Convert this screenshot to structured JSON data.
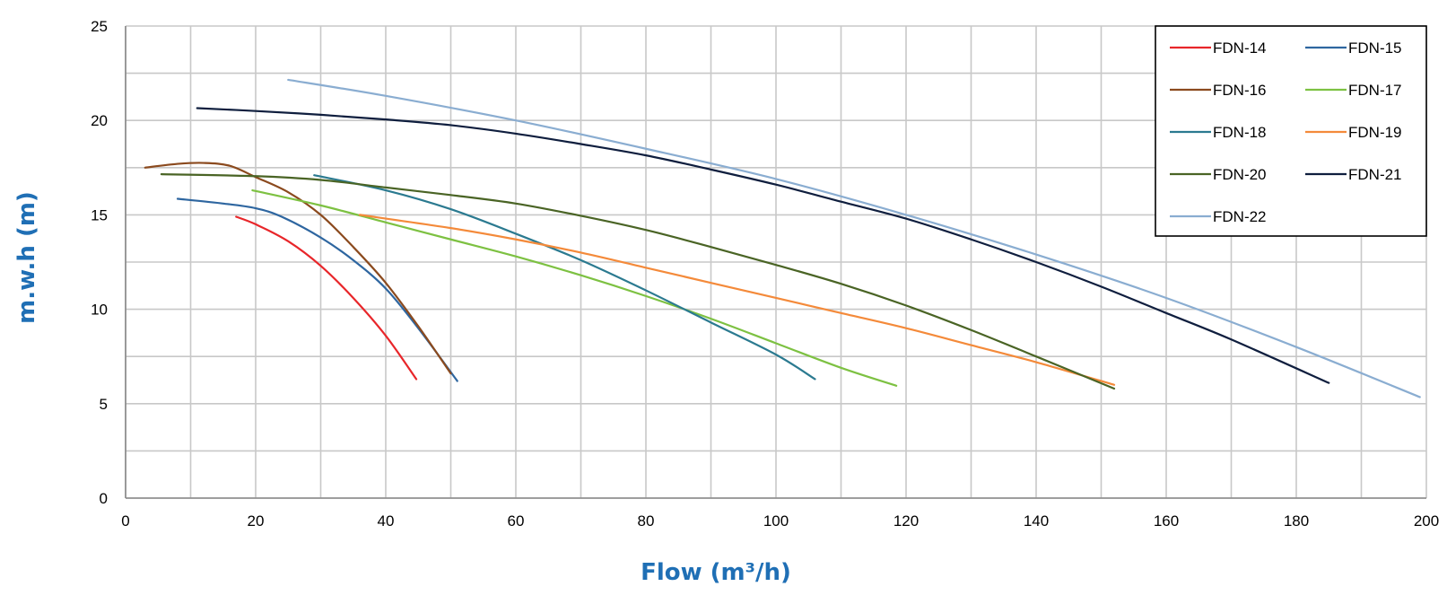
{
  "chart_data": {
    "type": "line",
    "title": "",
    "xlabel": "Flow (m³/h)",
    "ylabel": "m.w.h (m)",
    "xlim": [
      0,
      200
    ],
    "ylim": [
      0,
      25
    ],
    "x_ticks": [
      0,
      20,
      40,
      60,
      80,
      100,
      120,
      140,
      160,
      180,
      200
    ],
    "y_ticks": [
      0,
      5,
      10,
      15,
      20,
      25
    ],
    "x_minor_step": 10,
    "y_minor_step": 2.5,
    "grid": true,
    "legend_position": "top-right",
    "legend_columns": 2,
    "series": [
      {
        "name": "FDN-14",
        "color": "#e8262a",
        "points": [
          [
            17,
            14.9
          ],
          [
            20,
            14.5
          ],
          [
            25,
            13.6
          ],
          [
            30,
            12.3
          ],
          [
            35,
            10.6
          ],
          [
            40,
            8.6
          ],
          [
            44.7,
            6.3
          ]
        ]
      },
      {
        "name": "FDN-15",
        "color": "#2e66a0",
        "points": [
          [
            8,
            15.85
          ],
          [
            15,
            15.6
          ],
          [
            20,
            15.35
          ],
          [
            24,
            14.9
          ],
          [
            30,
            13.8
          ],
          [
            35,
            12.6
          ],
          [
            40,
            11.1
          ],
          [
            45,
            9.0
          ],
          [
            51,
            6.2
          ]
        ]
      },
      {
        "name": "FDN-16",
        "color": "#8b4a1e",
        "points": [
          [
            3,
            17.5
          ],
          [
            8,
            17.7
          ],
          [
            12,
            17.75
          ],
          [
            16,
            17.6
          ],
          [
            20,
            17.0
          ],
          [
            25,
            16.2
          ],
          [
            30,
            15.0
          ],
          [
            35,
            13.3
          ],
          [
            40,
            11.4
          ],
          [
            45,
            9.1
          ],
          [
            50,
            6.6
          ]
        ]
      },
      {
        "name": "FDN-17",
        "color": "#7dc142",
        "points": [
          [
            19.5,
            16.3
          ],
          [
            30,
            15.5
          ],
          [
            40,
            14.6
          ],
          [
            50,
            13.7
          ],
          [
            60,
            12.8
          ],
          [
            70,
            11.8
          ],
          [
            80,
            10.7
          ],
          [
            90,
            9.5
          ],
          [
            100,
            8.2
          ],
          [
            110,
            6.9
          ],
          [
            118.5,
            5.95
          ]
        ]
      },
      {
        "name": "FDN-18",
        "color": "#2b7a90",
        "points": [
          [
            29,
            17.1
          ],
          [
            40,
            16.3
          ],
          [
            50,
            15.3
          ],
          [
            60,
            14.0
          ],
          [
            70,
            12.6
          ],
          [
            80,
            11.0
          ],
          [
            90,
            9.3
          ],
          [
            100,
            7.6
          ],
          [
            106,
            6.3
          ]
        ]
      },
      {
        "name": "FDN-19",
        "color": "#f48a3a",
        "points": [
          [
            36,
            15.0
          ],
          [
            50,
            14.3
          ],
          [
            60,
            13.7
          ],
          [
            70,
            13.0
          ],
          [
            80,
            12.2
          ],
          [
            90,
            11.4
          ],
          [
            100,
            10.6
          ],
          [
            110,
            9.8
          ],
          [
            120,
            9.0
          ],
          [
            130,
            8.1
          ],
          [
            140,
            7.2
          ],
          [
            152,
            6.0
          ]
        ]
      },
      {
        "name": "FDN-20",
        "color": "#4a6425",
        "points": [
          [
            5.5,
            17.15
          ],
          [
            20,
            17.05
          ],
          [
            30,
            16.85
          ],
          [
            40,
            16.45
          ],
          [
            50,
            16.05
          ],
          [
            60,
            15.6
          ],
          [
            70,
            14.95
          ],
          [
            80,
            14.2
          ],
          [
            90,
            13.3
          ],
          [
            100,
            12.35
          ],
          [
            110,
            11.35
          ],
          [
            120,
            10.2
          ],
          [
            130,
            8.9
          ],
          [
            140,
            7.5
          ],
          [
            152,
            5.8
          ]
        ]
      },
      {
        "name": "FDN-21",
        "color": "#0f1e3e",
        "points": [
          [
            11,
            20.65
          ],
          [
            20,
            20.5
          ],
          [
            30,
            20.3
          ],
          [
            40,
            20.05
          ],
          [
            50,
            19.75
          ],
          [
            60,
            19.3
          ],
          [
            70,
            18.75
          ],
          [
            80,
            18.15
          ],
          [
            90,
            17.4
          ],
          [
            100,
            16.6
          ],
          [
            110,
            15.7
          ],
          [
            120,
            14.8
          ],
          [
            130,
            13.7
          ],
          [
            140,
            12.5
          ],
          [
            150,
            11.2
          ],
          [
            160,
            9.8
          ],
          [
            170,
            8.4
          ],
          [
            185,
            6.1
          ]
        ]
      },
      {
        "name": "FDN-22",
        "color": "#8aadd1",
        "points": [
          [
            25,
            22.15
          ],
          [
            40,
            21.3
          ],
          [
            60,
            20.0
          ],
          [
            80,
            18.5
          ],
          [
            100,
            16.9
          ],
          [
            120,
            15.0
          ],
          [
            140,
            12.9
          ],
          [
            160,
            10.6
          ],
          [
            180,
            8.0
          ],
          [
            199,
            5.35
          ]
        ]
      }
    ]
  }
}
